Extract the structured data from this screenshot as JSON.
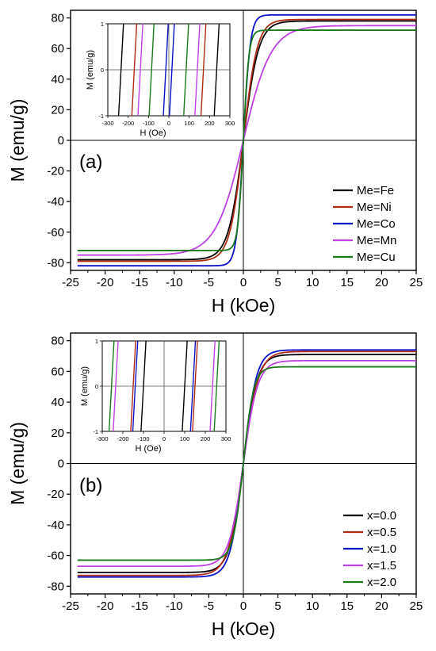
{
  "chart_data": [
    {
      "type": "line",
      "panel_label": "(a)",
      "xlabel": "H (kOe)",
      "ylabel": "M (emu/g)",
      "xlim": [
        -25,
        25
      ],
      "ylim": [
        -85,
        85
      ],
      "xticks": [
        -25,
        -20,
        -15,
        -10,
        -5,
        0,
        5,
        10,
        15,
        20,
        25
      ],
      "yticks": [
        -80,
        -60,
        -40,
        -20,
        0,
        20,
        40,
        60,
        80
      ],
      "legend_position": "bottom-right",
      "series": [
        {
          "name": "Me=Fe",
          "color": "#000000",
          "ms": 78,
          "hscale": 2.2
        },
        {
          "name": "Me=Ni",
          "color": "#b02a14",
          "ms": 79,
          "hscale": 2.0
        },
        {
          "name": "Me=Co",
          "color": "#0a10c8",
          "ms": 82,
          "hscale": 1.0
        },
        {
          "name": "Me=Mn",
          "color": "#c040e8",
          "ms": 75,
          "hscale": 4.0
        },
        {
          "name": "Me=Cu",
          "color": "#1a7a1a",
          "ms": 72,
          "hscale": 0.8
        }
      ],
      "inset": {
        "xlabel": "H (Oe)",
        "ylabel": "M (emu/g)",
        "xlim": [
          -300,
          300
        ],
        "ylim": [
          -1,
          1
        ],
        "xticks": [
          -300,
          -200,
          -100,
          0,
          100,
          200,
          300
        ],
        "yticks": [
          -1,
          0,
          1
        ],
        "coercivity_Oe": [
          {
            "series": "Me=Fe",
            "hc": 235
          },
          {
            "series": "Me=Ni",
            "hc": 170
          },
          {
            "series": "Me=Co",
            "hc": 15
          },
          {
            "series": "Me=Mn",
            "hc": 140
          },
          {
            "series": "Me=Cu",
            "hc": 85
          }
        ]
      }
    },
    {
      "type": "line",
      "panel_label": "(b)",
      "xlabel": "H (kOe)",
      "ylabel": "M (emu/g)",
      "xlim": [
        -25,
        25
      ],
      "ylim": [
        -85,
        85
      ],
      "xticks": [
        -25,
        -20,
        -15,
        -10,
        -5,
        0,
        5,
        10,
        15,
        20,
        25
      ],
      "yticks": [
        -80,
        -60,
        -40,
        -20,
        0,
        20,
        40,
        60,
        80
      ],
      "legend_position": "bottom-right",
      "series": [
        {
          "name": "x=0.0",
          "color": "#000000",
          "ms": 71,
          "hscale": 2.0
        },
        {
          "name": "x=0.5",
          "color": "#b02a14",
          "ms": 73,
          "hscale": 2.2
        },
        {
          "name": "x=1.0",
          "color": "#0a10c8",
          "ms": 74,
          "hscale": 1.9
        },
        {
          "name": "x=1.5",
          "color": "#c040e8",
          "ms": 67,
          "hscale": 2.1
        },
        {
          "name": "x=2.0",
          "color": "#1a7a1a",
          "ms": 63,
          "hscale": 1.5
        }
      ],
      "inset": {
        "xlabel": "H (Oe)",
        "ylabel": "M (emu/g)",
        "xlim": [
          -300,
          300
        ],
        "ylim": [
          -1,
          1
        ],
        "xticks": [
          -300,
          -200,
          -100,
          0,
          100,
          200,
          300
        ],
        "yticks": [
          -1,
          0,
          1
        ],
        "coercivity_Oe": [
          {
            "series": "x=0.0",
            "hc": 100
          },
          {
            "series": "x=0.5",
            "hc": 150
          },
          {
            "series": "x=1.0",
            "hc": 140
          },
          {
            "series": "x=1.5",
            "hc": 235
          },
          {
            "series": "x=2.0",
            "hc": 255
          }
        ]
      }
    }
  ]
}
